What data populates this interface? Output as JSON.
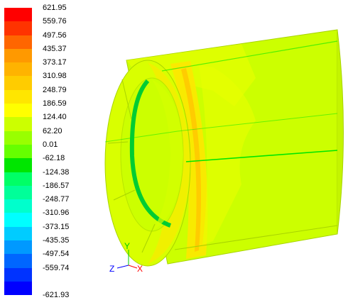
{
  "legend": {
    "ticks": [
      {
        "value": "621.95",
        "color": "#ff0000"
      },
      {
        "value": "559.76",
        "color": "#ff3300"
      },
      {
        "value": "497.56",
        "color": "#ff6600"
      },
      {
        "value": "435.37",
        "color": "#ff9900"
      },
      {
        "value": "373.17",
        "color": "#ffb300"
      },
      {
        "value": "310.98",
        "color": "#ffcc00"
      },
      {
        "value": "248.79",
        "color": "#ffe600"
      },
      {
        "value": "186.59",
        "color": "#ffff00"
      },
      {
        "value": "124.40",
        "color": "#ccff00"
      },
      {
        "value": "62.20",
        "color": "#99ff00"
      },
      {
        "value": "0.01",
        "color": "#66ff00"
      },
      {
        "value": "-62.18",
        "color": "#00e600"
      },
      {
        "value": "-124.38",
        "color": "#00ff66"
      },
      {
        "value": "-186.57",
        "color": "#00ff99"
      },
      {
        "value": "-248.77",
        "color": "#00ffcc"
      },
      {
        "value": "-310.96",
        "color": "#00ffff"
      },
      {
        "value": "-373.15",
        "color": "#00ccff"
      },
      {
        "value": "-435.35",
        "color": "#0099ff"
      },
      {
        "value": "-497.54",
        "color": "#0066ff"
      },
      {
        "value": "-559.74",
        "color": "#0033ff"
      }
    ],
    "min_value": "-621.93",
    "bottom_color": "#0000ff"
  },
  "axes": {
    "y_label": "Y",
    "z_label": "Z",
    "x_label": "X",
    "y_color": "#00cc00",
    "z_color": "#0000ff",
    "x_color": "#ff0000"
  },
  "model": {
    "body_color": "#ccff00",
    "highlight_color": "#e6ff00",
    "warm_color": "#ffe600",
    "hot_color": "#ffcc00",
    "seam_color": "#00e600",
    "inner_ring_color": "#00cc33"
  }
}
